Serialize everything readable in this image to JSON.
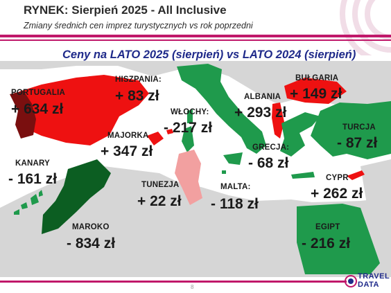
{
  "header": {
    "title": "RYNEK: Sierpień 2025 - All Inclusive",
    "subtitle": "Zmiany średnich cen imprez turystycznych vs rok poprzedni"
  },
  "map_title": "Ceny na LATO 2025 (sierpień) vs  LATO 2024 (sierpień)",
  "colors": {
    "increase": "#ee1111",
    "strong_increase": "#7a0f0f",
    "decrease": "#1f9a4c",
    "strong_decrease": "#0c5e22",
    "mild_increase": "#f2a0a0",
    "land": "#d6d6d6",
    "accent": "#c0186a",
    "title_blue": "#1f2a8a"
  },
  "countries": [
    {
      "key": "portugalia",
      "name": "PORTUGALIA",
      "value": "+ 634 zł"
    },
    {
      "key": "hiszpania",
      "name": "HISZPANIA:",
      "value": "+ 83 zł"
    },
    {
      "key": "majorka",
      "name": "MAJORKA",
      "value": "+ 347 zł"
    },
    {
      "key": "wlochy",
      "name": "WŁOCHY:",
      "value": "- 217 zł"
    },
    {
      "key": "albania",
      "name": "ALBANIA",
      "value": "+ 293 zł"
    },
    {
      "key": "bulgaria",
      "name": "BUŁGARIA",
      "value": "+ 149 zł"
    },
    {
      "key": "turcja",
      "name": "TURCJA",
      "value": "- 87 zł"
    },
    {
      "key": "grecja",
      "name": "GRECJA:",
      "value": "- 68 zł"
    },
    {
      "key": "kanary",
      "name": "KANARY",
      "value": "- 161 zł"
    },
    {
      "key": "tunezja",
      "name": "TUNEZJA",
      "value": "+ 22 zł"
    },
    {
      "key": "malta",
      "name": "MALTA:",
      "value": "- 118 zł"
    },
    {
      "key": "cypr",
      "name": "CYPR",
      "value": "+ 262 zł"
    },
    {
      "key": "maroko",
      "name": "MAROKO",
      "value": "- 834 zł"
    },
    {
      "key": "egipt",
      "name": "EGIPT",
      "value": "- 216 zł"
    }
  ],
  "footer": {
    "page_number": "8",
    "logo_line1": "TRAVEL",
    "logo_line2": "DATA"
  }
}
